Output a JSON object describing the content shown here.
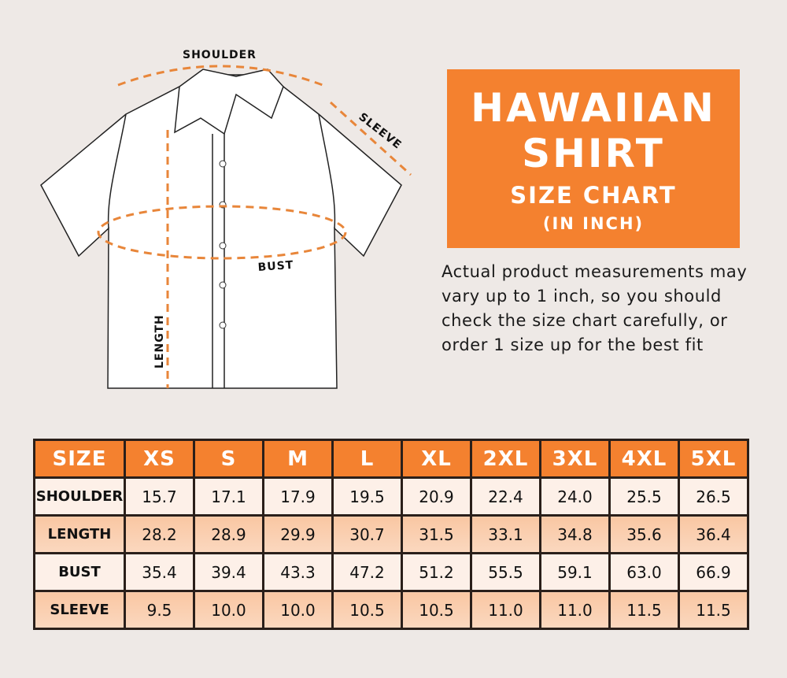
{
  "diagram": {
    "labels": {
      "shoulder": "SHOULDER",
      "sleeve": "SLEEVE",
      "bust": "BUST",
      "length": "LENGTH"
    }
  },
  "title_box": {
    "line1": "HAWAIIAN",
    "line2": "SHIRT",
    "line3": "SIZE CHART",
    "line4": "(IN INCH)"
  },
  "note": "Actual product measurements may vary up to 1 inch, so you should check the size chart carefully, or order 1 size up for the best fit",
  "colors": {
    "accent": "#f4812f",
    "background": "#eee9e6",
    "row_light": "#fdf0e8",
    "row_dark": "#f9c7a3"
  },
  "table": {
    "headers": [
      "SIZE",
      "XS",
      "S",
      "M",
      "L",
      "XL",
      "2XL",
      "3XL",
      "4XL",
      "5XL"
    ],
    "rows": [
      {
        "label": "SHOULDER",
        "values": [
          "15.7",
          "17.1",
          "17.9",
          "19.5",
          "20.9",
          "22.4",
          "24.0",
          "25.5",
          "26.5"
        ]
      },
      {
        "label": "LENGTH",
        "values": [
          "28.2",
          "28.9",
          "29.9",
          "30.7",
          "31.5",
          "33.1",
          "34.8",
          "35.6",
          "36.4"
        ]
      },
      {
        "label": "BUST",
        "values": [
          "35.4",
          "39.4",
          "43.3",
          "47.2",
          "51.2",
          "55.5",
          "59.1",
          "63.0",
          "66.9"
        ]
      },
      {
        "label": "SLEEVE",
        "values": [
          "9.5",
          "10.0",
          "10.0",
          "10.5",
          "10.5",
          "11.0",
          "11.0",
          "11.5",
          "11.5"
        ]
      }
    ]
  }
}
